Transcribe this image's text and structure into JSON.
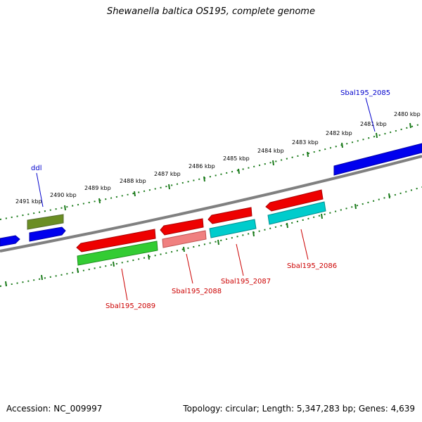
{
  "title": "Shewanella baltica OS195, complete genome",
  "footer": {
    "accession": "Accession: NC_009997",
    "summary": "Topology: circular; Length: 5,347,283 bp; Genes: 4,639"
  },
  "scale": {
    "tick_labels": [
      "2491 kbp",
      "2490 kbp",
      "2489 kbp",
      "2488 kbp",
      "2487 kbp",
      "2486 kbp",
      "2485 kbp",
      "2484 kbp",
      "2483 kbp",
      "2482 kbp",
      "2481 kbp",
      "2480 kbp"
    ]
  },
  "genes": {
    "ddl": "ddl",
    "g2085": "Sbal195_2085",
    "g2086": "Sbal195_2086",
    "g2087": "Sbal195_2087",
    "g2088": "Sbal195_2088",
    "g2089": "Sbal195_2089"
  },
  "colors": {
    "backbone": "#808080",
    "tick": "#1a7a1a",
    "blue_gene": "#0000ee",
    "red_gene": "#ee0000",
    "green_gene": "#33cc33",
    "olive_gene": "#6b8e23",
    "cyan_gene": "#00cccc",
    "pink_gene": "#f08080",
    "label_blue": "#0000cc",
    "label_red": "#cc0000"
  }
}
